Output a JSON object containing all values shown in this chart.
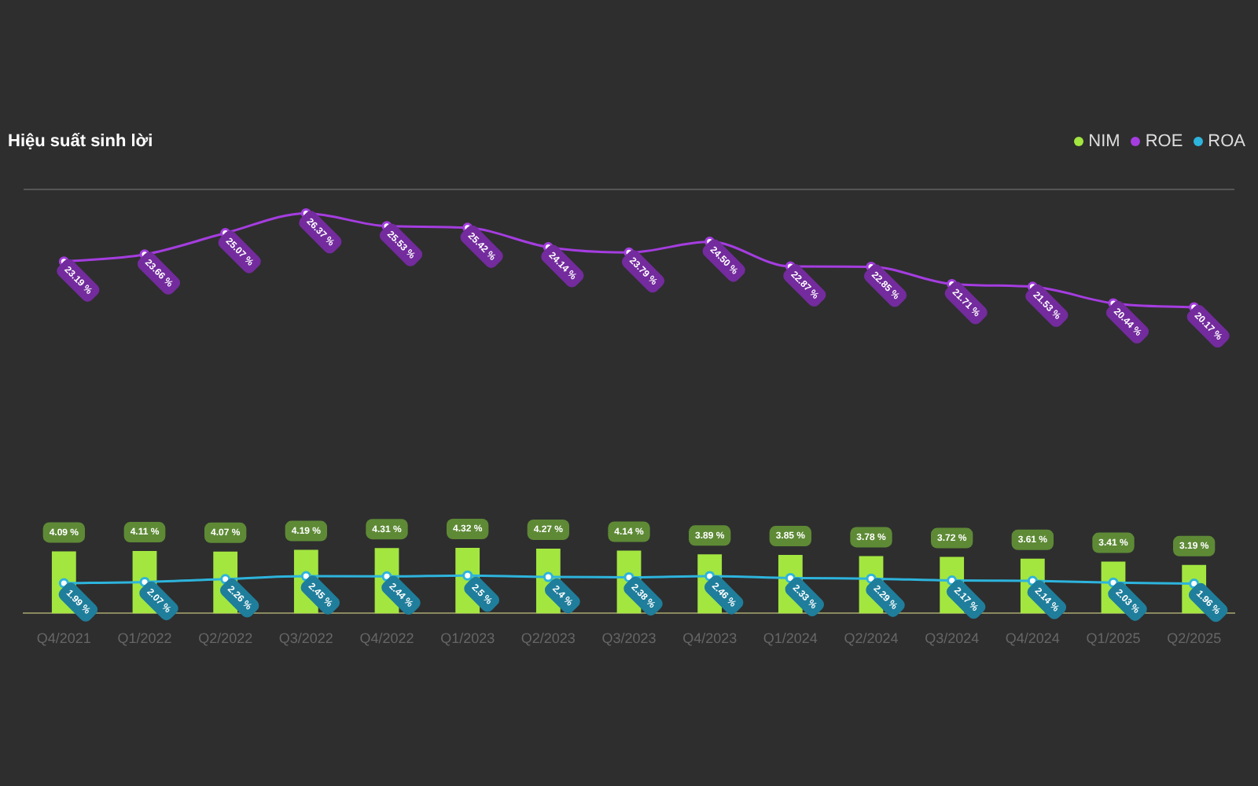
{
  "chart_data": {
    "type": "bar",
    "title": "Hiệu suất sinh lời",
    "categories": [
      "Q4/2021",
      "Q1/2022",
      "Q2/2022",
      "Q3/2022",
      "Q4/2022",
      "Q1/2023",
      "Q2/2023",
      "Q3/2023",
      "Q4/2023",
      "Q1/2024",
      "Q2/2024",
      "Q3/2024",
      "Q4/2024",
      "Q1/2025",
      "Q2/2025"
    ],
    "series": [
      {
        "name": "NIM",
        "color": "#a3e640",
        "values": [
          4.09,
          4.11,
          4.07,
          4.19,
          4.31,
          4.32,
          4.27,
          4.14,
          3.89,
          3.85,
          3.78,
          3.72,
          3.61,
          3.41,
          3.19
        ],
        "value_labels": [
          "4.09 %",
          "4.11 %",
          "4.07 %",
          "4.19 %",
          "4.31 %",
          "4.32 %",
          "4.27 %",
          "4.14 %",
          "3.89 %",
          "3.85 %",
          "3.78 %",
          "3.72 %",
          "3.61 %",
          "3.41 %",
          "3.19 %"
        ]
      },
      {
        "name": "ROE",
        "type": "line",
        "color": "#a53de0",
        "values": [
          23.19,
          23.66,
          25.07,
          26.37,
          25.53,
          25.42,
          24.14,
          23.79,
          24.5,
          22.87,
          22.85,
          21.71,
          21.53,
          20.44,
          20.17
        ],
        "value_labels": [
          "23.19 %",
          "23.66 %",
          "25.07 %",
          "26.37 %",
          "25.53 %",
          "25.42 %",
          "24.14 %",
          "23.79 %",
          "24.50 %",
          "22.87 %",
          "22.85 %",
          "21.71 %",
          "21.53 %",
          "20.44 %",
          "20.17 %"
        ]
      },
      {
        "name": "ROA",
        "type": "line",
        "color": "#2db4dd",
        "values": [
          1.99,
          2.07,
          2.26,
          2.45,
          2.44,
          2.5,
          2.4,
          2.38,
          2.46,
          2.33,
          2.29,
          2.17,
          2.14,
          2.03,
          1.96
        ],
        "value_labels": [
          "1.99 %",
          "2.07 %",
          "2.26 %",
          "2.45 %",
          "2.44 %",
          "2.5 %",
          "2.4 %",
          "2.38 %",
          "2.46 %",
          "2.33 %",
          "2.29 %",
          "2.17 %",
          "2.14 %",
          "2.03 %",
          "1.96 %"
        ]
      }
    ],
    "ylim": [
      0,
      28
    ],
    "tick_labels": "x",
    "legend": "top right",
    "marker": "circle"
  }
}
